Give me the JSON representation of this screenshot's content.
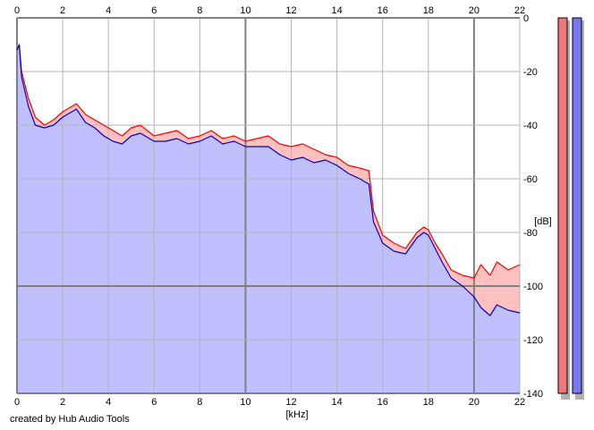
{
  "credit": "created by Hub Audio Tools",
  "chart_data": {
    "type": "line",
    "title": "",
    "xlabel": "[kHz]",
    "ylabel": "[dB]",
    "xlim": [
      0,
      22
    ],
    "ylim": [
      -140,
      0
    ],
    "x_ticks": [
      0,
      2,
      4,
      6,
      8,
      10,
      12,
      14,
      16,
      18,
      20,
      22
    ],
    "y_ticks": [
      0,
      -20,
      -40,
      -60,
      -80,
      -100,
      -120,
      -140
    ],
    "grid": true,
    "area_fill": "#c0c0ff",
    "band_fill": "#ffc0c0",
    "series": [
      {
        "color": "#ff0000",
        "x": [
          0,
          0.1,
          0.2,
          0.5,
          0.8,
          1.2,
          1.6,
          2.0,
          2.4,
          2.6,
          3.0,
          3.4,
          3.8,
          4.2,
          4.6,
          5.0,
          5.4,
          6.0,
          6.5,
          7.0,
          7.5,
          8.0,
          8.5,
          9.0,
          9.5,
          10.0,
          10.5,
          11.0,
          11.5,
          12.0,
          12.5,
          13.0,
          13.5,
          14.0,
          14.5,
          15.0,
          15.4,
          15.6,
          16.0,
          16.5,
          17.0,
          17.5,
          17.8,
          18.0,
          18.3,
          18.6,
          19.0,
          19.5,
          20.0,
          20.3,
          20.7,
          21.0,
          21.5,
          22.0
        ],
        "values": [
          -12,
          -10,
          -20,
          -30,
          -37,
          -40,
          -38,
          -35,
          -33,
          -32,
          -36,
          -38,
          -40,
          -42,
          -44,
          -41,
          -40,
          -44,
          -43,
          -42,
          -45,
          -44,
          -42,
          -45,
          -44,
          -46,
          -45,
          -44,
          -47,
          -48,
          -47,
          -49,
          -51,
          -52,
          -55,
          -56,
          -57,
          -72,
          -81,
          -84,
          -86,
          -80,
          -78,
          -79,
          -84,
          -88,
          -94,
          -96,
          -97,
          -92,
          -96,
          -91,
          -94,
          -92
        ]
      },
      {
        "color": "#0000cc",
        "x": [
          0,
          0.1,
          0.2,
          0.5,
          0.8,
          1.2,
          1.6,
          2.0,
          2.4,
          2.6,
          3.0,
          3.4,
          3.8,
          4.2,
          4.6,
          5.0,
          5.4,
          6.0,
          6.5,
          7.0,
          7.5,
          8.0,
          8.5,
          9.0,
          9.5,
          10.0,
          10.5,
          11.0,
          11.5,
          12.0,
          12.5,
          13.0,
          13.5,
          14.0,
          14.5,
          15.0,
          15.4,
          15.6,
          16.0,
          16.5,
          17.0,
          17.5,
          17.8,
          18.0,
          18.3,
          18.6,
          19.0,
          19.5,
          20.0,
          20.3,
          20.7,
          21.0,
          21.5,
          22.0
        ],
        "values": [
          -12,
          -10,
          -22,
          -33,
          -40,
          -41,
          -40,
          -37,
          -35,
          -34,
          -39,
          -41,
          -44,
          -46,
          -47,
          -44,
          -43,
          -46,
          -46,
          -45,
          -47,
          -46,
          -44,
          -47,
          -46,
          -48,
          -48,
          -48,
          -51,
          -53,
          -52,
          -54,
          -53,
          -55,
          -58,
          -60,
          -62,
          -76,
          -84,
          -87,
          -88,
          -82,
          -80,
          -81,
          -86,
          -91,
          -97,
          -100,
          -104,
          -108,
          -111,
          -107,
          -109,
          -110
        ]
      }
    ],
    "level_meters": [
      {
        "color": "#f07878",
        "border": "#000000"
      },
      {
        "color": "#7878f0",
        "border": "#000000"
      }
    ]
  }
}
